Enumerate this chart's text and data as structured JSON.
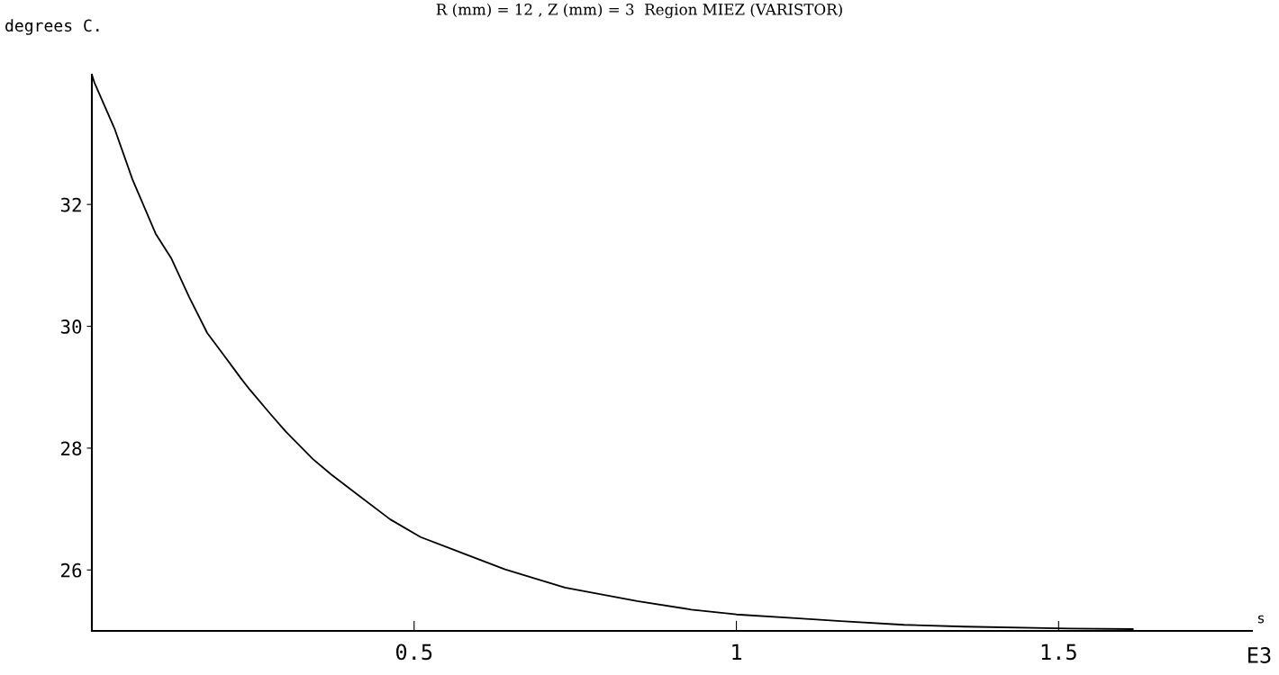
{
  "chart_data": {
    "type": "line",
    "title": "R (mm) = 12 , Z (mm) = 3  Region MIEZ (VARISTOR)",
    "ylabel": "degrees C.",
    "xlabel": "s",
    "annotations": [
      "E3"
    ],
    "x": [
      0,
      0.004,
      0.035,
      0.063,
      0.099,
      0.123,
      0.151,
      0.179,
      0.203,
      0.231,
      0.245,
      0.277,
      0.301,
      0.343,
      0.371,
      0.413,
      0.463,
      0.51,
      0.557,
      0.641,
      0.734,
      0.846,
      0.93,
      1.0,
      1.092,
      1.162,
      1.26,
      1.354,
      1.517,
      1.615
    ],
    "series": [
      {
        "color": "#000000",
        "values": [
          34.13,
          34.0,
          33.25,
          32.41,
          31.52,
          31.12,
          30.48,
          29.89,
          29.55,
          29.15,
          28.96,
          28.56,
          28.27,
          27.82,
          27.57,
          27.23,
          26.83,
          26.54,
          26.35,
          26.01,
          25.71,
          25.49,
          25.35,
          25.27,
          25.21,
          25.16,
          25.1,
          25.07,
          25.04,
          25.03
        ]
      }
    ],
    "xlim": [
      0,
      1.8
    ],
    "xticks": [
      0.5,
      1,
      1.5
    ],
    "ylim": [
      25,
      34.13
    ],
    "yticks": [
      26,
      28,
      30,
      32
    ],
    "grid": false,
    "legend": false,
    "marker": "none",
    "line_style": "solid"
  }
}
